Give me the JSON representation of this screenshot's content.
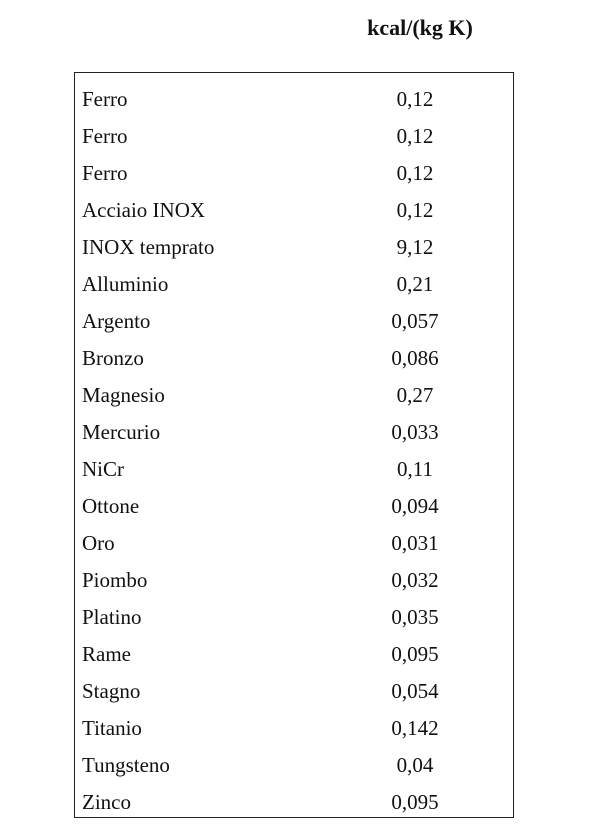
{
  "header": {
    "unit": "kcal/(kg K)"
  },
  "table": {
    "rows": [
      {
        "material": "Ferro",
        "value": "0,12"
      },
      {
        "material": "Ferro",
        "value": "0,12"
      },
      {
        "material": "Ferro",
        "value": "0,12"
      },
      {
        "material": "Acciaio INOX",
        "value": "0,12"
      },
      {
        "material": "INOX temprato",
        "value": "9,12"
      },
      {
        "material": "Alluminio",
        "value": "0,21"
      },
      {
        "material": "Argento",
        "value": "0,057"
      },
      {
        "material": "Bronzo",
        "value": "0,086"
      },
      {
        "material": "Magnesio",
        "value": "0,27"
      },
      {
        "material": "Mercurio",
        "value": "0,033"
      },
      {
        "material": "NiCr",
        "value": "0,11"
      },
      {
        "material": "Ottone",
        "value": "0,094"
      },
      {
        "material": "Oro",
        "value": "0,031"
      },
      {
        "material": "Piombo",
        "value": "0,032"
      },
      {
        "material": "Platino",
        "value": "0,035"
      },
      {
        "material": "Rame",
        "value": "0,095"
      },
      {
        "material": "Stagno",
        "value": "0,054"
      },
      {
        "material": "Titanio",
        "value": "0,142"
      },
      {
        "material": "Tungsteno",
        "value": "0,04"
      },
      {
        "material": "Zinco",
        "value": "0,095"
      }
    ]
  }
}
